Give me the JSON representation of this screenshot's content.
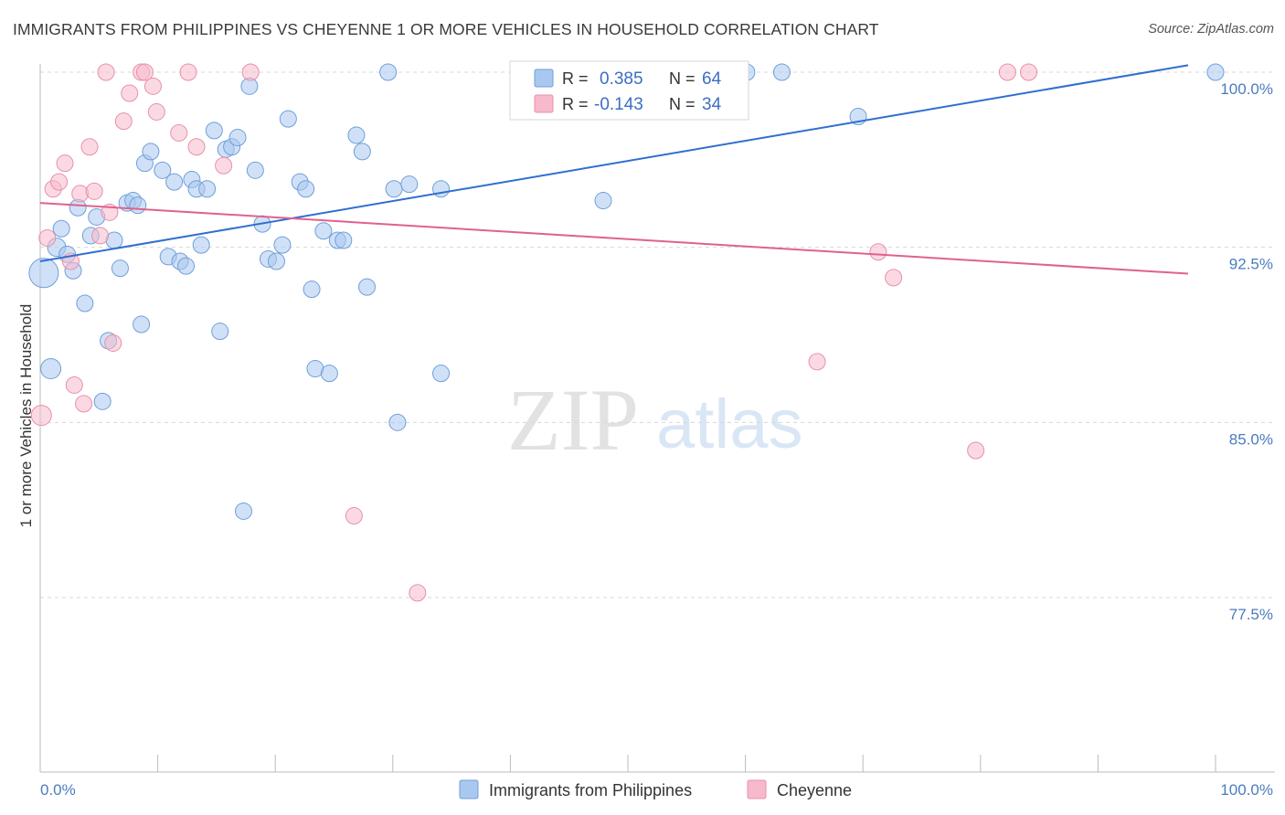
{
  "header": {
    "title": "IMMIGRANTS FROM PHILIPPINES VS CHEYENNE 1 OR MORE VEHICLES IN HOUSEHOLD CORRELATION CHART",
    "source": "Source: ZipAtlas.com"
  },
  "watermark": {
    "zip": "ZIP",
    "atlas": "atlas"
  },
  "stats": [
    {
      "r_label": "R =",
      "r_value": "0.385",
      "n_label": "N =",
      "n_value": "64",
      "color": "#a9c8f0"
    },
    {
      "r_label": "R =",
      "r_value": "-0.143",
      "n_label": "N =",
      "n_value": "34",
      "color": "#f7b9cc"
    }
  ],
  "chart_data": {
    "type": "scatter",
    "ylabel": "1 or more Vehicles in Household",
    "xlim": [
      0,
      100
    ],
    "ylim": [
      70.0,
      101.2
    ],
    "x_tick_labels": [
      "0.0%",
      "100.0%"
    ],
    "y_ticks": [
      77.5,
      85.0,
      92.5,
      100.0
    ],
    "y_tick_labels": [
      "77.5%",
      "85.0%",
      "92.5%",
      "100.0%"
    ],
    "grid": true,
    "legend_position": "bottom",
    "series": [
      {
        "name": "Immigrants from Philippines",
        "color": "#a9c8f0",
        "stroke": "#6f9fd8",
        "trend": {
          "x": [
            0,
            100
          ],
          "y": [
            91.9,
            100.5
          ],
          "color": "#2f6fcf"
        },
        "points": [
          [
            0.3,
            91.4,
            16
          ],
          [
            0.9,
            87.3,
            11
          ],
          [
            1.4,
            92.5,
            10
          ],
          [
            1.8,
            93.3,
            9
          ],
          [
            2.3,
            92.2,
            9
          ],
          [
            2.8,
            91.5,
            9
          ],
          [
            3.2,
            94.2,
            9
          ],
          [
            3.8,
            90.1,
            9
          ],
          [
            4.3,
            93.0,
            9
          ],
          [
            4.8,
            93.8,
            9
          ],
          [
            5.3,
            85.9,
            9
          ],
          [
            5.8,
            88.5,
            9
          ],
          [
            6.3,
            92.8,
            9
          ],
          [
            6.8,
            91.6,
            9
          ],
          [
            7.4,
            94.4,
            9
          ],
          [
            7.9,
            94.5,
            9
          ],
          [
            8.3,
            94.3,
            9
          ],
          [
            8.6,
            89.2,
            9
          ],
          [
            8.9,
            96.1,
            9
          ],
          [
            9.4,
            96.6,
            9
          ],
          [
            10.4,
            95.8,
            9
          ],
          [
            10.9,
            92.1,
            9
          ],
          [
            11.4,
            95.3,
            9
          ],
          [
            11.9,
            91.9,
            9
          ],
          [
            12.4,
            91.7,
            9
          ],
          [
            12.9,
            95.4,
            9
          ],
          [
            13.3,
            95.0,
            9
          ],
          [
            13.7,
            92.6,
            9
          ],
          [
            14.2,
            95.0,
            9
          ],
          [
            14.8,
            97.5,
            9
          ],
          [
            15.3,
            88.9,
            9
          ],
          [
            15.8,
            96.7,
            9
          ],
          [
            16.3,
            96.8,
            9
          ],
          [
            16.8,
            97.2,
            9
          ],
          [
            17.3,
            81.2,
            9
          ],
          [
            17.8,
            99.4,
            9
          ],
          [
            18.3,
            95.8,
            9
          ],
          [
            18.9,
            93.5,
            9
          ],
          [
            19.4,
            92.0,
            9
          ],
          [
            20.1,
            91.9,
            9
          ],
          [
            20.6,
            92.6,
            9
          ],
          [
            21.1,
            98.0,
            9
          ],
          [
            22.1,
            95.3,
            9
          ],
          [
            22.6,
            95.0,
            9
          ],
          [
            23.1,
            90.7,
            9
          ],
          [
            23.4,
            87.3,
            9
          ],
          [
            24.1,
            93.2,
            9
          ],
          [
            24.6,
            87.1,
            9
          ],
          [
            25.3,
            92.8,
            9
          ],
          [
            25.8,
            92.8,
            9
          ],
          [
            26.9,
            97.3,
            9
          ],
          [
            27.4,
            96.6,
            9
          ],
          [
            27.8,
            90.8,
            9
          ],
          [
            29.6,
            100.0,
            9
          ],
          [
            30.1,
            95.0,
            9
          ],
          [
            30.4,
            85.0,
            9
          ],
          [
            31.4,
            95.2,
            9
          ],
          [
            34.1,
            95.0,
            9
          ],
          [
            34.1,
            87.1,
            9
          ],
          [
            47.9,
            94.5,
            9
          ],
          [
            60.1,
            100.0,
            9
          ],
          [
            63.1,
            100.0,
            9
          ],
          [
            69.6,
            98.1,
            9
          ],
          [
            100.0,
            100.0,
            9
          ]
        ]
      },
      {
        "name": "Cheyenne",
        "color": "#f7b9cc",
        "stroke": "#e890ab",
        "trend": {
          "x": [
            0,
            100
          ],
          "y": [
            94.4,
            91.3
          ],
          "color": "#e0618e"
        },
        "points": [
          [
            0.1,
            85.3,
            11
          ],
          [
            0.6,
            92.9,
            9
          ],
          [
            1.1,
            95.0,
            9
          ],
          [
            1.6,
            95.3,
            9
          ],
          [
            2.1,
            96.1,
            9
          ],
          [
            2.6,
            91.9,
            9
          ],
          [
            2.9,
            86.6,
            9
          ],
          [
            3.4,
            94.8,
            9
          ],
          [
            3.7,
            85.8,
            9
          ],
          [
            4.2,
            96.8,
            9
          ],
          [
            4.6,
            94.9,
            9
          ],
          [
            5.1,
            93.0,
            9
          ],
          [
            5.6,
            100.0,
            9
          ],
          [
            5.9,
            94.0,
            9
          ],
          [
            6.2,
            88.4,
            9
          ],
          [
            7.1,
            97.9,
            9
          ],
          [
            7.6,
            99.1,
            9
          ],
          [
            8.6,
            100.0,
            9
          ],
          [
            8.9,
            100.0,
            9
          ],
          [
            9.6,
            99.4,
            9
          ],
          [
            9.9,
            98.3,
            9
          ],
          [
            11.8,
            97.4,
            9
          ],
          [
            12.6,
            100.0,
            9
          ],
          [
            13.3,
            96.8,
            9
          ],
          [
            15.6,
            96.0,
            9
          ],
          [
            17.9,
            100.0,
            9
          ],
          [
            26.7,
            81.0,
            9
          ],
          [
            32.1,
            77.7,
            9
          ],
          [
            66.1,
            87.6,
            9
          ],
          [
            71.3,
            92.3,
            9
          ],
          [
            72.6,
            91.2,
            9
          ],
          [
            79.6,
            83.8,
            9
          ],
          [
            82.3,
            100.0,
            9
          ],
          [
            84.1,
            100.0,
            9
          ]
        ]
      }
    ]
  }
}
